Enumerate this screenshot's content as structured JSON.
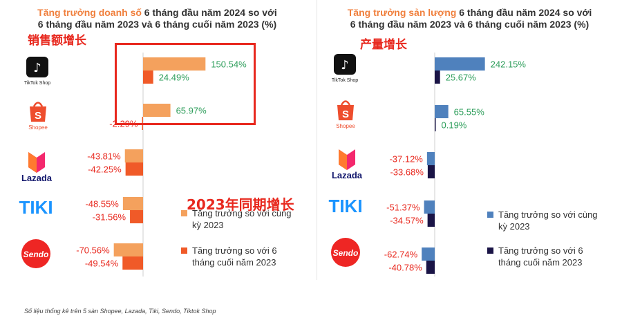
{
  "left_title": {
    "highlight": "Tăng trưởng doanh số",
    "rest": " 6 tháng đầu năm 2024 so với",
    "line2": "6 tháng đầu năm 2023 và 6 tháng cuối năm 2023 (%)"
  },
  "right_title": {
    "highlight": "Tăng trưởng sản lượng",
    "rest": " 6 tháng đầu năm 2024 so với",
    "line2": "6 tháng đầu năm 2023 và 6 tháng cuối năm 2023 (%)"
  },
  "annotations": {
    "left_cn": "销售额增长",
    "right_cn": "产量增长",
    "yoy_cn": "2023年同期增长"
  },
  "footnote": "Số liệu thống kê trên 5 sàn Shopee, Lazada, Tiki, Sendo, Tiktok Shop",
  "logos": {
    "tiktok": "TikTok Shop",
    "shopee": "Shopee",
    "lazada": "Lazada",
    "tiki": "TIKI",
    "sendo": "Sendo"
  },
  "colors": {
    "left_yoy": "#f4a15d",
    "left_hoh": "#f05a28",
    "right_yoy": "#4f81bd",
    "right_hoh": "#1a1446",
    "positive_label": "#2e9e5b",
    "negative_label": "#e8281e",
    "highlight": "#e8281e"
  },
  "chart_data": [
    {
      "type": "bar",
      "orientation": "horizontal",
      "categories": [
        "TikTok Shop",
        "Shopee",
        "Lazada",
        "Tiki",
        "Sendo"
      ],
      "series": [
        {
          "name": "Tăng trưởng so với cùng kỳ 2023",
          "values": [
            150.54,
            65.97,
            -43.81,
            -48.55,
            -70.56
          ]
        },
        {
          "name": "Tăng trưởng so với 6 tháng cuối năm 2023",
          "values": [
            24.49,
            -2.29,
            -42.25,
            -31.56,
            -49.54
          ]
        }
      ],
      "data_labels": [
        [
          "150.54%",
          "65.97%",
          "-43.81%",
          "-48.55%",
          "-70.56%"
        ],
        [
          "24.49%",
          "-2.29%",
          "-42.25%",
          "-31.56%",
          "-49.54%"
        ]
      ]
    },
    {
      "type": "bar",
      "orientation": "horizontal",
      "categories": [
        "TikTok Shop",
        "Shopee",
        "Lazada",
        "Tiki",
        "Sendo"
      ],
      "series": [
        {
          "name": "Tăng trưởng so với cùng kỳ 2023",
          "values": [
            242.15,
            65.55,
            -37.12,
            -51.37,
            -62.74
          ]
        },
        {
          "name": "Tăng trưởng so với 6 tháng cuối năm 2023",
          "values": [
            25.67,
            0.19,
            -33.68,
            -34.57,
            -40.78
          ]
        }
      ],
      "data_labels": [
        [
          "242.15%",
          "65.55%",
          "-37.12%",
          "-51.37%",
          "-62.74%"
        ],
        [
          "25.67%",
          "0.19%",
          "-33.68%",
          "-34.57%",
          "-40.78%"
        ]
      ]
    }
  ]
}
